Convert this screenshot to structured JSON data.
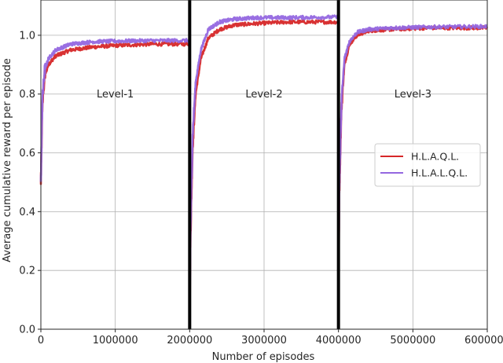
{
  "chart_data": {
    "type": "line",
    "xlabel": "Number of episodes",
    "ylabel": "Average cumulative reward per episode",
    "xlim": [
      0,
      6000000
    ],
    "ylim": [
      0,
      1.12
    ],
    "xticks": [
      0,
      1000000,
      2000000,
      3000000,
      4000000,
      5000000,
      6000000
    ],
    "xtick_labels": [
      "0",
      "1000000",
      "2000000",
      "3000000",
      "4000000",
      "5000000",
      "6000000"
    ],
    "yticks": [
      0.0,
      0.2,
      0.4,
      0.6,
      0.8,
      1.0
    ],
    "ytick_labels": [
      "0.0",
      "0.2",
      "0.4",
      "0.6",
      "0.8",
      "1.0"
    ],
    "grid": true,
    "legend_position": "center-right",
    "level_boundaries": [
      2000000,
      4000000
    ],
    "annotations": [
      {
        "text": "Level-1",
        "x": 1000000,
        "y": 0.8
      },
      {
        "text": "Level-2",
        "x": 3000000,
        "y": 0.8
      },
      {
        "text": "Level-3",
        "x": 5000000,
        "y": 0.8
      }
    ],
    "series": [
      {
        "name": "H.L.A.Q.L.",
        "color": "#d62728",
        "levels": [
          {
            "x": [
              0,
              20000,
              50000,
              100000,
              200000,
              400000,
              700000,
              1000000,
              1500000,
              2000000
            ],
            "y": [
              0.5,
              0.76,
              0.86,
              0.9,
              0.93,
              0.95,
              0.96,
              0.965,
              0.97,
              0.97
            ]
          },
          {
            "x": [
              2000000,
              2010000,
              2040000,
              2080000,
              2150000,
              2250000,
              2400000,
              2600000,
              2900000,
              3300000,
              4000000
            ],
            "y": [
              0.02,
              0.3,
              0.62,
              0.8,
              0.92,
              0.99,
              1.02,
              1.035,
              1.04,
              1.045,
              1.045
            ]
          },
          {
            "x": [
              4000000,
              4010000,
              4040000,
              4080000,
              4150000,
              4250000,
              4400000,
              4700000,
              5200000,
              6000000
            ],
            "y": [
              0.06,
              0.45,
              0.75,
              0.9,
              0.97,
              1.0,
              1.015,
              1.02,
              1.025,
              1.025
            ]
          }
        ]
      },
      {
        "name": "H.L.A.L.Q.L.",
        "color": "#9467e0",
        "levels": [
          {
            "x": [
              0,
              20000,
              50000,
              100000,
              200000,
              400000,
              700000,
              1000000,
              1500000,
              2000000
            ],
            "y": [
              0.5,
              0.78,
              0.88,
              0.92,
              0.95,
              0.97,
              0.978,
              0.98,
              0.982,
              0.982
            ]
          },
          {
            "x": [
              2000000,
              2010000,
              2040000,
              2080000,
              2150000,
              2250000,
              2400000,
              2600000,
              2900000,
              3300000,
              4000000
            ],
            "y": [
              0.02,
              0.32,
              0.66,
              0.84,
              0.95,
              1.02,
              1.045,
              1.055,
              1.06,
              1.06,
              1.062
            ]
          },
          {
            "x": [
              4000000,
              4010000,
              4040000,
              4080000,
              4150000,
              4250000,
              4400000,
              4700000,
              5200000,
              6000000
            ],
            "y": [
              0.06,
              0.47,
              0.77,
              0.92,
              0.98,
              1.01,
              1.02,
              1.025,
              1.028,
              1.03
            ]
          }
        ]
      }
    ]
  }
}
